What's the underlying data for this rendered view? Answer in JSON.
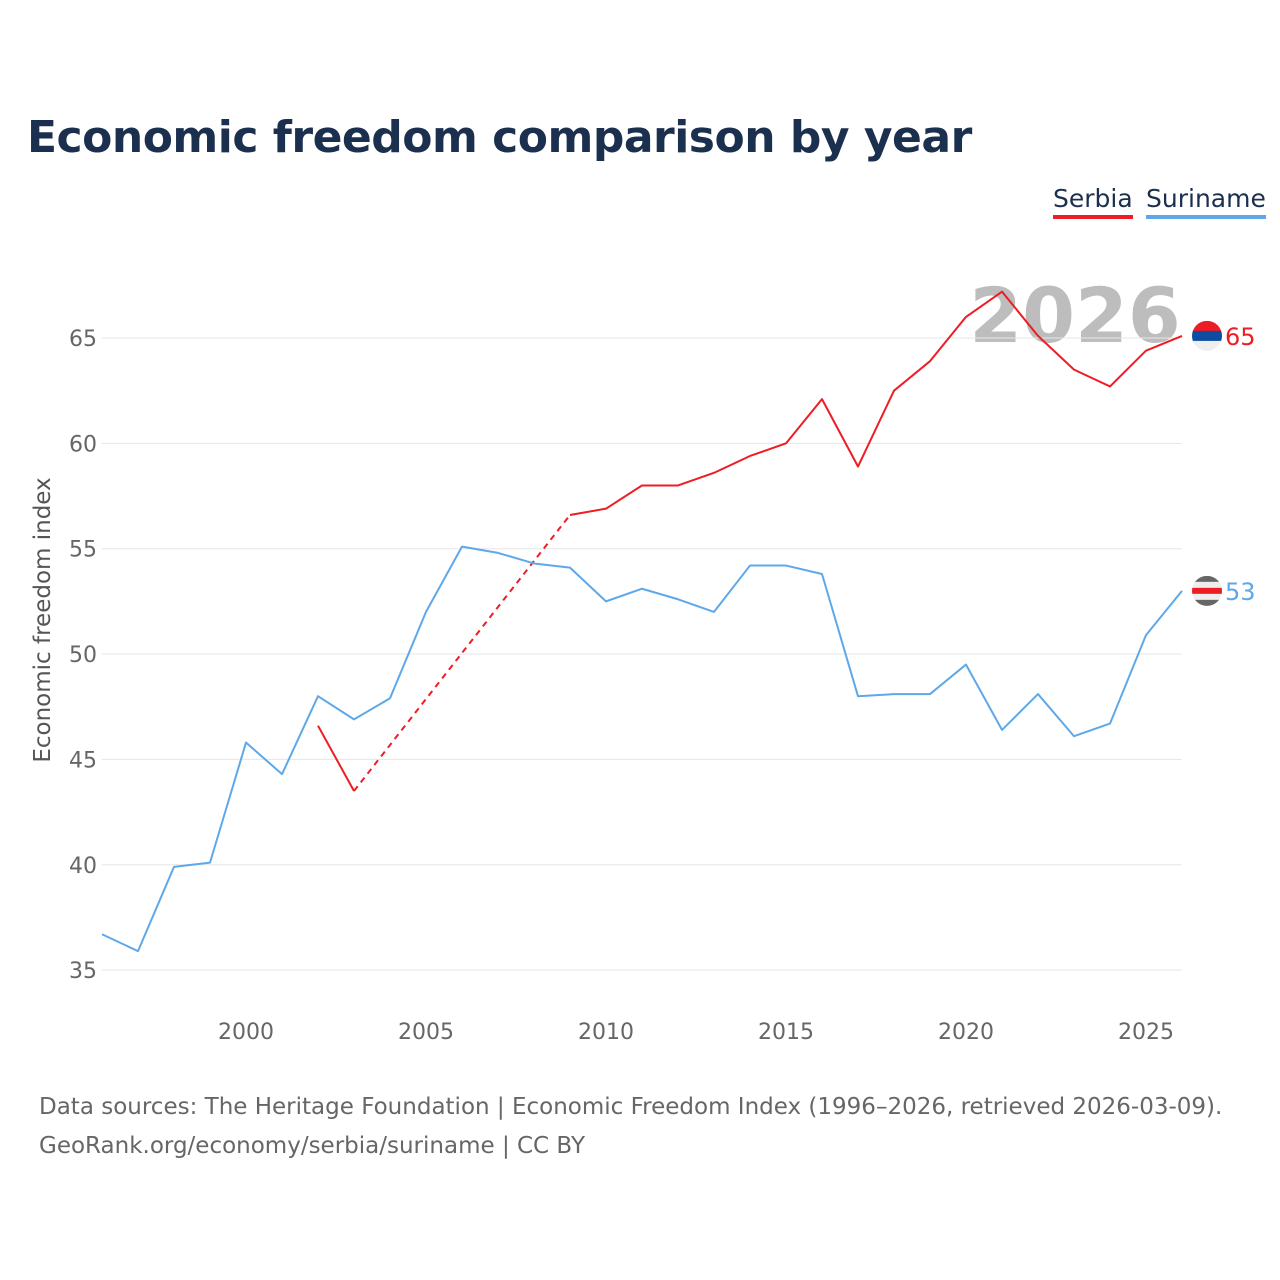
{
  "chart_data": {
    "type": "line",
    "title": "Economic freedom comparison by year",
    "xlabel": "",
    "ylabel": "Economic freedom index",
    "xlim": [
      1996,
      2026
    ],
    "ylim": [
      33.5,
      68
    ],
    "xticks": [
      2000,
      2005,
      2010,
      2015,
      2020,
      2025
    ],
    "yticks": [
      35,
      40,
      45,
      50,
      55,
      60,
      65
    ],
    "grid": true,
    "legend_placement": "top-right",
    "year_watermark": "2026",
    "series": [
      {
        "name": "Serbia",
        "color": "#ee1c25",
        "end_label": "65",
        "x": [
          2002,
          2003,
          2009,
          2010,
          2011,
          2012,
          2013,
          2014,
          2015,
          2016,
          2017,
          2018,
          2019,
          2020,
          2021,
          2022,
          2023,
          2024,
          2025,
          2026
        ],
        "y": [
          46.6,
          43.5,
          56.6,
          56.9,
          58.0,
          58.0,
          58.6,
          59.4,
          60.0,
          62.1,
          58.9,
          62.5,
          63.9,
          66.0,
          67.2,
          65.1,
          63.5,
          62.7,
          64.4,
          65.1
        ],
        "dashed_gap": [
          2003,
          2009
        ]
      },
      {
        "name": "Suriname",
        "color": "#5ea8ea",
        "end_label": "53",
        "x": [
          1996,
          1997,
          1998,
          1999,
          2000,
          2001,
          2002,
          2003,
          2004,
          2005,
          2006,
          2007,
          2008,
          2009,
          2010,
          2011,
          2012,
          2013,
          2014,
          2015,
          2016,
          2017,
          2018,
          2019,
          2020,
          2021,
          2022,
          2023,
          2024,
          2025,
          2026
        ],
        "y": [
          36.7,
          35.9,
          39.9,
          40.1,
          45.8,
          44.3,
          48.0,
          46.9,
          47.9,
          52.0,
          55.1,
          54.8,
          54.3,
          54.1,
          52.5,
          53.1,
          52.6,
          52.0,
          54.2,
          54.2,
          53.8,
          48.0,
          48.1,
          48.1,
          49.5,
          46.4,
          48.1,
          46.1,
          46.7,
          50.9,
          53.0
        ]
      }
    ]
  },
  "source_line1": "Data sources: The Heritage Foundation | Economic Freedom Index (1996–2026, retrieved 2026-03-09).",
  "source_line2": "GeoRank.org/economy/serbia/suriname | CC BY"
}
